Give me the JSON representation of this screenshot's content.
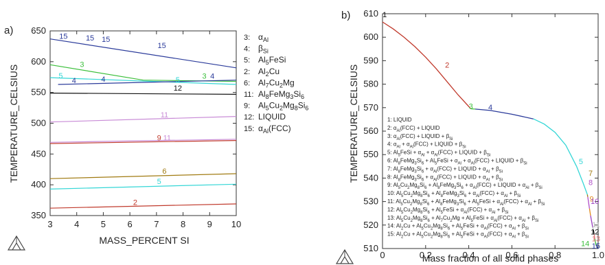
{
  "chart_data": [
    {
      "panel_label": "a)",
      "type": "line",
      "xlabel": "MASS_PERCENT SI",
      "ylabel": "TEMPERATURE_CELSIUS",
      "xlim": [
        3,
        10
      ],
      "ylim": [
        350,
        650
      ],
      "xticks": [
        "3",
        "4",
        "5",
        "6",
        "7",
        "8",
        "9",
        "10"
      ],
      "yticks": [
        "350",
        "400",
        "450",
        "500",
        "550",
        "600",
        "650"
      ],
      "grid": false,
      "legend_placement": "right",
      "legend": [
        {
          "num": "3:",
          "text": "αAl"
        },
        {
          "num": "4:",
          "text": "βSi"
        },
        {
          "num": "5:",
          "text": "Al5FeSi"
        },
        {
          "num": "2:",
          "text": "Al2Cu"
        },
        {
          "num": "6:",
          "text": "Al7Cu2Mg"
        },
        {
          "num": "11:",
          "text": "Al8FeMg3Si6"
        },
        {
          "num": "9:",
          "text": "Al5Cu2Mg8Si6"
        },
        {
          "num": "12:",
          "text": "LIQUID"
        },
        {
          "num": "15:",
          "text": "αAl(FCC)"
        }
      ],
      "series": [
        {
          "label": "15",
          "color": "#2a3a9a",
          "x": [
            3,
            10
          ],
          "y": [
            637,
            590
          ],
          "labels": [
            {
              "text": "15",
              "x": 3.5,
              "y": 635
            },
            {
              "text": "15",
              "x": 4.5,
              "y": 632
            },
            {
              "text": "15",
              "x": 5.1,
              "y": 630
            },
            {
              "text": "15",
              "x": 7.2,
              "y": 620
            }
          ]
        },
        {
          "label": "3",
          "color": "#3bbf3b",
          "x": [
            3,
            6.5,
            10
          ],
          "y": [
            595,
            570,
            568
          ],
          "labels": [
            {
              "text": "3",
              "x": 4.2,
              "y": 589
            },
            {
              "text": "3",
              "x": 8.8,
              "y": 570
            }
          ]
        },
        {
          "label": "5",
          "color": "#33d6d6",
          "x": [
            3,
            10
          ],
          "y": [
            574,
            563
          ],
          "labels": [
            {
              "text": "5",
              "x": 3.4,
              "y": 571
            },
            {
              "text": "5",
              "x": 7.8,
              "y": 564
            }
          ]
        },
        {
          "label": "4",
          "color": "#2a3a9a",
          "x": [
            3.3,
            10
          ],
          "y": [
            563,
            570
          ],
          "labels": [
            {
              "text": "4",
              "x": 3.9,
              "y": 563
            },
            {
              "text": "4",
              "x": 5.0,
              "y": 565
            },
            {
              "text": "4",
              "x": 9.1,
              "y": 570
            }
          ]
        },
        {
          "label": "12",
          "color": "#111111",
          "x": [
            3,
            10
          ],
          "y": [
            549,
            547
          ],
          "labels": [
            {
              "text": "12",
              "x": 7.8,
              "y": 551
            }
          ]
        },
        {
          "label": "11",
          "color": "#c88ad6",
          "x": [
            3,
            10
          ],
          "y": [
            502,
            511
          ],
          "labels": [
            {
              "text": "11",
              "x": 7.3,
              "y": 507
            }
          ]
        },
        {
          "label": "9",
          "color": "#c0392b",
          "x": [
            3,
            10
          ],
          "y": [
            467,
            472
          ],
          "labels": [
            {
              "text": "9",
              "x": 7.1,
              "y": 470
            }
          ]
        },
        {
          "label": "11",
          "color": "#c88ad6",
          "x": [
            3,
            10
          ],
          "y": [
            469,
            474
          ],
          "labels": [
            {
              "text": "11",
              "x": 7.4,
              "y": 470
            }
          ]
        },
        {
          "label": "6",
          "color": "#a07a10",
          "x": [
            3,
            10
          ],
          "y": [
            410,
            418
          ],
          "labels": [
            {
              "text": "6",
              "x": 7.3,
              "y": 416
            }
          ]
        },
        {
          "label": "5",
          "color": "#33d6d6",
          "x": [
            3,
            10
          ],
          "y": [
            393,
            401
          ],
          "labels": [
            {
              "text": "5",
              "x": 7.1,
              "y": 399
            }
          ]
        },
        {
          "label": "2",
          "color": "#c0392b",
          "x": [
            3,
            10
          ],
          "y": [
            362,
            369
          ],
          "labels": [
            {
              "text": "2",
              "x": 6.2,
              "y": 365
            }
          ]
        }
      ]
    },
    {
      "panel_label": "b)",
      "type": "line",
      "xlabel": "Mass fraction of all solid phases",
      "ylabel": "TEMPERATURE_CELSIUS",
      "xlim": [
        0,
        1.0
      ],
      "ylim": [
        510,
        610
      ],
      "xticks": [
        "0",
        "0.2",
        "0.4",
        "0.6",
        "0.8",
        "1.0"
      ],
      "yticks": [
        "510",
        "520",
        "530",
        "540",
        "550",
        "560",
        "570",
        "580",
        "590",
        "600",
        "610"
      ],
      "grid": false,
      "legend_placement": "left",
      "legend": [
        "1: LIQUID",
        "2: αAl(FCC) + LIQUID",
        "3: αAl(FCC) + LIQUID + βSi",
        "4: αAl + αAl(FCC) + LIQUID + βSi",
        "5: Al5FeSi + αAl + αAl(FCC) + LIQUID + βSi",
        "6: Al8FeMg3Si6 + Al5FeSi + αAl + αAl(FCC) + LIQUID + βSi",
        "7: Al8FeMg3Si6 + αAl(FCC) + LIQUID + αAl + βSi",
        "8: Al8FeMg3Si6 + αAl(FCC) + LIQUID + αAl + βSi",
        "9: Al5Cu2Mg8Si6 + Al8FeMg3Si6 + αAl(FCC) + LIQUID + αAl + βSi",
        "10: Al5Cu2Mg8Si6 + Al8FeMg3Si6 + αAl(FCC) + αAl + βSi",
        "11: Al5Cu2Mg8Si6 + Al8FeMg3Si6 + Al5FeSi + αAl(FCC) + αAl + βSi",
        "12: Al5Cu2Mg8Si6 + Al5FeSi + αAl(FCC) + αAl + βSi",
        "13: Al5Cu2Mg8Si6 + Al7Cu2Mg + Al5FeSi + αAl(FCC) + αAl + βSi",
        "14: Al2Cu + Al5Cu2Mg8Si6 + Al5FeSi + αAl(FCC) + αAl + βSi",
        "15: Al2Cu + Al5Cu2Mg8Si6 + Al5FeSi + αAl(FCC) + αAl + βSi"
      ],
      "series": [
        {
          "label": "2",
          "color": "#c0392b",
          "x": [
            0,
            0.05,
            0.1,
            0.15,
            0.2,
            0.25,
            0.3,
            0.35,
            0.41
          ],
          "y": [
            606.5,
            603.5,
            600,
            596,
            591.5,
            586.5,
            581,
            575.5,
            569.5
          ]
        },
        {
          "label": "3",
          "color": "#3bbf3b",
          "x": [
            0.41,
            0.43
          ],
          "y": [
            569.5,
            569.4
          ]
        },
        {
          "label": "4",
          "color": "#2a3a9a",
          "x": [
            0.43,
            0.5,
            0.6,
            0.7
          ],
          "y": [
            569.4,
            568.8,
            567.2,
            565.2
          ]
        },
        {
          "label": "5",
          "color": "#33d6d6",
          "x": [
            0.7,
            0.75,
            0.8,
            0.85,
            0.9,
            0.93,
            0.95
          ],
          "y": [
            565.2,
            563,
            559.5,
            554,
            545,
            538,
            533
          ]
        },
        {
          "label": "7",
          "color": "#a07a10",
          "x": [
            0.95,
            0.952
          ],
          "y": [
            533,
            532
          ]
        },
        {
          "label": "8",
          "color": "#b04ec8",
          "x": [
            0.952,
            0.96
          ],
          "y": [
            532,
            527
          ]
        },
        {
          "label": "9",
          "color": "#e08a1c",
          "x": [
            0.96,
            0.965
          ],
          "y": [
            527,
            524
          ]
        },
        {
          "label": "10",
          "color": "#9a3fc0",
          "x": [
            0.965,
            0.975
          ],
          "y": [
            524,
            519
          ]
        },
        {
          "label": "11",
          "color": "#bbbbbb",
          "x": [
            0.975,
            0.978
          ],
          "y": [
            519,
            518
          ]
        },
        {
          "label": "12",
          "color": "#111111",
          "x": [
            0.978,
            0.982
          ],
          "y": [
            518,
            516
          ]
        },
        {
          "label": "13",
          "color": "#e07b7b",
          "x": [
            0.982,
            0.985
          ],
          "y": [
            516,
            514
          ]
        },
        {
          "label": "14",
          "color": "#3bbf3b",
          "x": [
            0.985,
            0.99
          ],
          "y": [
            514,
            511.5
          ]
        },
        {
          "label": "15",
          "color": "#2a3a9a",
          "x": [
            0.99,
            1.0
          ],
          "y": [
            511.5,
            510
          ]
        }
      ],
      "curve_labels": [
        {
          "text": "1",
          "x": 0.01,
          "y": 608.5,
          "color": "#111111"
        },
        {
          "text": "2",
          "x": 0.3,
          "y": 587,
          "color": "#c0392b"
        },
        {
          "text": "3",
          "x": 0.41,
          "y": 569.5,
          "color": "#3bbf3b"
        },
        {
          "text": "4",
          "x": 0.5,
          "y": 569,
          "color": "#2a3a9a"
        },
        {
          "text": "5",
          "x": 0.92,
          "y": 546,
          "color": "#33d6d6"
        },
        {
          "text": "7",
          "x": 0.965,
          "y": 541,
          "color": "#a07a10"
        },
        {
          "text": "8",
          "x": 0.965,
          "y": 537,
          "color": "#b04ec8"
        },
        {
          "text": "9",
          "x": 0.97,
          "y": 530,
          "color": "#e08a1c"
        },
        {
          "text": "10",
          "x": 0.985,
          "y": 529,
          "color": "#9a3fc0"
        },
        {
          "text": "11",
          "x": 0.99,
          "y": 519,
          "color": "#bbbbbb"
        },
        {
          "text": "12",
          "x": 0.985,
          "y": 516,
          "color": "#111111"
        },
        {
          "text": "13",
          "x": 0.99,
          "y": 513,
          "color": "#e07b7b"
        },
        {
          "text": "14",
          "x": 0.94,
          "y": 511,
          "color": "#3bbf3b"
        },
        {
          "text": "15",
          "x": 0.99,
          "y": 510,
          "color": "#2a3a9a"
        }
      ]
    }
  ]
}
